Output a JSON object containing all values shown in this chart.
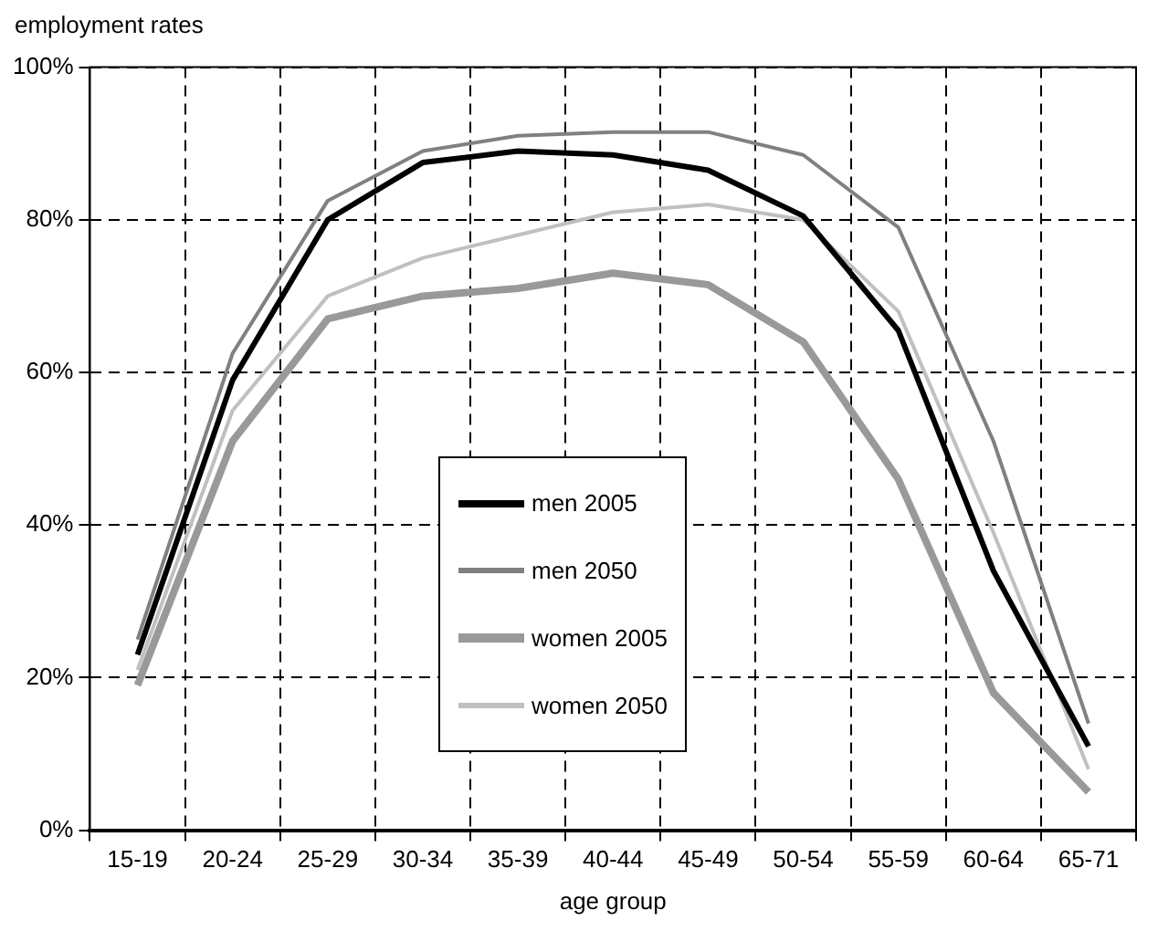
{
  "chart_data": {
    "type": "line",
    "ylabel": "employment rates",
    "xlabel": "age group",
    "categories": [
      "15-19",
      "20-24",
      "25-29",
      "30-34",
      "35-39",
      "40-44",
      "45-49",
      "50-54",
      "55-59",
      "60-64",
      "65-71"
    ],
    "series": [
      {
        "name": "men 2005",
        "color": "#000000",
        "values": [
          23,
          59,
          80,
          87.5,
          89,
          88.5,
          86.5,
          80.5,
          65.5,
          34,
          11
        ]
      },
      {
        "name": "men 2050",
        "color": "#808080",
        "values": [
          25,
          62.5,
          82.5,
          89,
          91,
          91.5,
          91.5,
          88.5,
          79,
          51,
          14
        ]
      },
      {
        "name": "women 2005",
        "color": "#999999",
        "values": [
          19,
          51,
          67,
          70,
          71,
          73,
          71.5,
          64,
          46,
          18,
          5
        ]
      },
      {
        "name": "women 2050",
        "color": "#c0c0c0",
        "values": [
          21,
          55,
          70,
          75,
          78,
          81,
          82,
          80,
          68,
          39,
          8
        ]
      }
    ],
    "ylim": [
      0,
      100
    ],
    "yticks": [
      {
        "value": 0,
        "label": "0%"
      },
      {
        "value": 20,
        "label": "20%"
      },
      {
        "value": 40,
        "label": "40%"
      },
      {
        "value": 60,
        "label": "60%"
      },
      {
        "value": 80,
        "label": "80%"
      },
      {
        "value": 100,
        "label": "100%"
      }
    ],
    "grid": true,
    "legend": "bottom",
    "marker": "none",
    "line_style": "solid"
  }
}
